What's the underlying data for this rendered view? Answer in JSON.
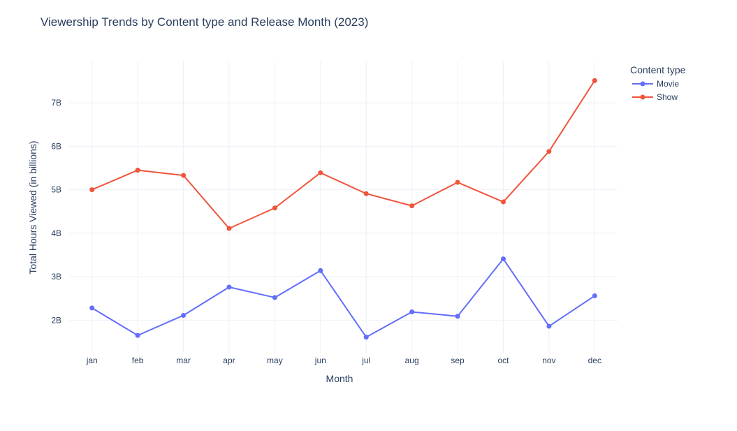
{
  "chart_data": {
    "type": "line",
    "title": "Viewership Trends by Content type and Release Month (2023)",
    "xlabel": "Month",
    "ylabel": "Total Hours Viewed (in billions)",
    "categories": [
      "jan",
      "feb",
      "mar",
      "apr",
      "may",
      "jun",
      "jul",
      "aug",
      "sep",
      "oct",
      "nov",
      "dec"
    ],
    "ylim": [
      1.25,
      7.95
    ],
    "yticks": [
      2,
      3,
      4,
      5,
      6,
      7
    ],
    "ytick_labels": [
      "2B",
      "3B",
      "4B",
      "5B",
      "6B",
      "7B"
    ],
    "grid": true,
    "legend_title": "Content type",
    "legend_position": "top-right",
    "series": [
      {
        "name": "Movie",
        "color": "#636efa",
        "values": [
          2.28,
          1.65,
          2.11,
          2.76,
          2.52,
          3.14,
          1.61,
          2.19,
          2.09,
          3.41,
          1.86,
          2.56
        ]
      },
      {
        "name": "Show",
        "color": "#ef553b",
        "values": [
          5.0,
          5.45,
          5.33,
          4.11,
          4.58,
          5.39,
          4.91,
          4.63,
          5.17,
          4.72,
          5.88,
          7.51
        ]
      }
    ]
  }
}
